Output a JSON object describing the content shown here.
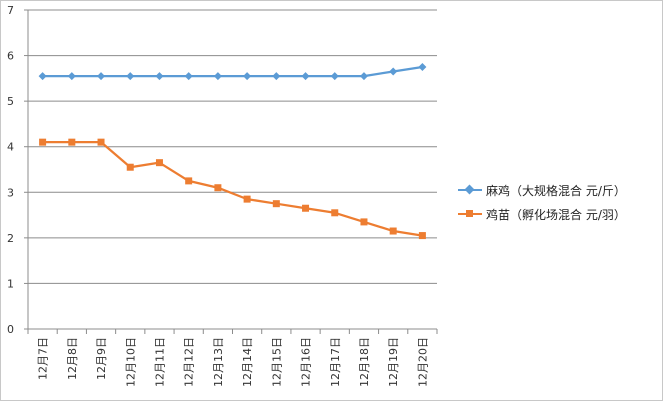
{
  "chart_data": {
    "type": "line",
    "categories": [
      "12月7日",
      "12月8日",
      "12月9日",
      "12月10日",
      "12月11日",
      "12月12日",
      "12月13日",
      "12月14日",
      "12月15日",
      "12月16日",
      "12月17日",
      "12月18日",
      "12月19日",
      "12月20日"
    ],
    "ylim": [
      0,
      7
    ],
    "yticks": [
      "0",
      "1",
      "2",
      "3",
      "4",
      "5",
      "6",
      "7"
    ],
    "grid": true,
    "legend_position": "right",
    "series": [
      {
        "name": "麻鸡（大规格混合  元/斤）",
        "color": "#5b9bd5",
        "marker": "diamond",
        "values": [
          5.55,
          5.55,
          5.55,
          5.55,
          5.55,
          5.55,
          5.55,
          5.55,
          5.55,
          5.55,
          5.55,
          5.55,
          5.65,
          5.75
        ]
      },
      {
        "name": "鸡苗（孵化场混合  元/羽）",
        "color": "#ed7d31",
        "marker": "square",
        "values": [
          4.1,
          4.1,
          4.1,
          3.55,
          3.65,
          3.25,
          3.1,
          2.85,
          2.75,
          2.65,
          2.55,
          2.35,
          2.15,
          2.05
        ]
      }
    ]
  }
}
